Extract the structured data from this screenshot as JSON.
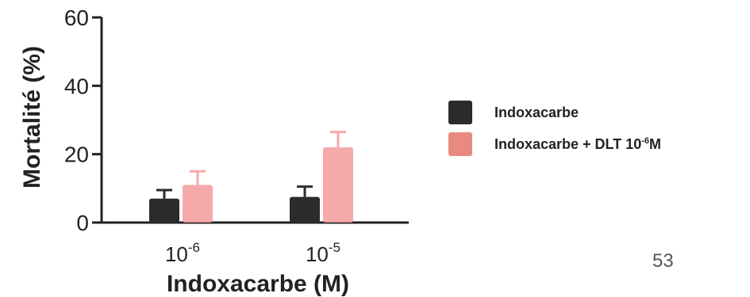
{
  "chart_data": {
    "type": "bar",
    "ylabel": "Mortalité (%)",
    "xlabel": "Indoxacarbe (M)",
    "ylim": [
      0,
      60
    ],
    "yticks": [
      0,
      20,
      40,
      60
    ],
    "categories": [
      {
        "base": "10",
        "exp": "-6"
      },
      {
        "base": "10",
        "exp": "-5"
      }
    ],
    "series": [
      {
        "name": "Indoxacarbe",
        "color": "#2b2b2b",
        "values": [
          7,
          7.5
        ],
        "errors": [
          2.5,
          3
        ]
      },
      {
        "name": "Indoxacarbe + DLT 10-6M",
        "color": "#f4a0a0",
        "values": [
          11,
          22
        ],
        "errors": [
          4,
          4.5
        ]
      }
    ],
    "legend": {
      "position": "right",
      "items": [
        {
          "text": "Indoxacarbe",
          "color": "#2b2b2b"
        },
        {
          "text": "Indoxacarbe + DLT 10",
          "sup": "-6",
          "suffix": "M",
          "color": "#e88a80"
        }
      ]
    }
  },
  "page_number": "53"
}
